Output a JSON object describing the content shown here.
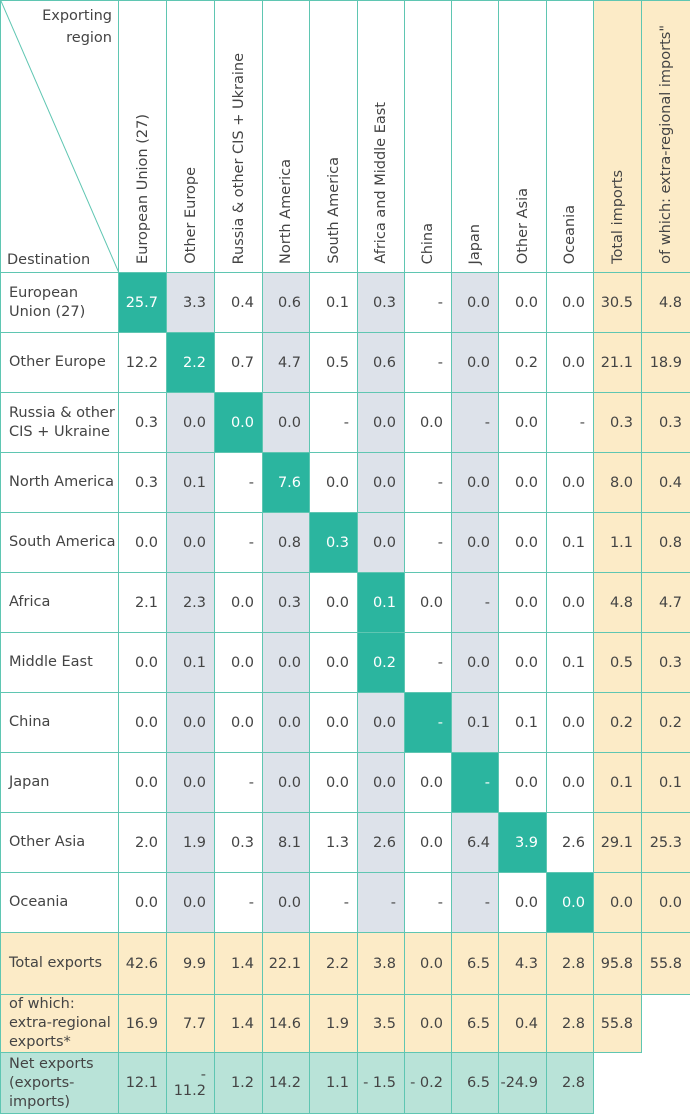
{
  "header": {
    "corner_top": "Exporting region",
    "corner_bottom": "Destination",
    "columns": [
      "European Union (27)",
      "Other Europe",
      "Russia & other CIS + Ukraine",
      "North America",
      "South America",
      "Africa and Middle East",
      "China",
      "Japan",
      "Other Asia",
      "Oceania",
      "Total imports",
      "of which: extra-regional imports\""
    ]
  },
  "rows": [
    {
      "label": "European Union (27)",
      "cells": [
        "25.7",
        "3.3",
        "0.4",
        "0.6",
        "0.1",
        "0.3",
        "-",
        "0.0",
        "0.0",
        "0.0",
        "30.5",
        "4.8"
      ]
    },
    {
      "label": "Other Europe",
      "cells": [
        "12.2",
        "2.2",
        "0.7",
        "4.7",
        "0.5",
        "0.6",
        "-",
        "0.0",
        "0.2",
        "0.0",
        "21.1",
        "18.9"
      ]
    },
    {
      "label": "Russia & other CIS + Ukraine",
      "cells": [
        "0.3",
        "0.0",
        "0.0",
        "0.0",
        "-",
        "0.0",
        "0.0",
        "-",
        "0.0",
        "-",
        "0.3",
        "0.3"
      ]
    },
    {
      "label": "North America",
      "cells": [
        "0.3",
        "0.1",
        "-",
        "7.6",
        "0.0",
        "0.0",
        "-",
        "0.0",
        "0.0",
        "0.0",
        "8.0",
        "0.4"
      ]
    },
    {
      "label": "South America",
      "cells": [
        "0.0",
        "0.0",
        "-",
        "0.8",
        "0.3",
        "0.0",
        "-",
        "0.0",
        "0.0",
        "0.1",
        "1.1",
        "0.8"
      ]
    },
    {
      "label": "Africa",
      "cells": [
        "2.1",
        "2.3",
        "0.0",
        "0.3",
        "0.0",
        "0.1",
        "0.0",
        "-",
        "0.0",
        "0.0",
        "4.8",
        "4.7"
      ]
    },
    {
      "label": "Middle East",
      "cells": [
        "0.0",
        "0.1",
        "0.0",
        "0.0",
        "0.0",
        "0.2",
        "-",
        "0.0",
        "0.0",
        "0.1",
        "0.5",
        "0.3"
      ]
    },
    {
      "label": "China",
      "cells": [
        "0.0",
        "0.0",
        "0.0",
        "0.0",
        "0.0",
        "0.0",
        "-",
        "0.1",
        "0.1",
        "0.0",
        "0.2",
        "0.2"
      ]
    },
    {
      "label": "Japan",
      "cells": [
        "0.0",
        "0.0",
        "-",
        "0.0",
        "0.0",
        "0.0",
        "0.0",
        "-",
        "0.0",
        "0.0",
        "0.1",
        "0.1"
      ]
    },
    {
      "label": "Other Asia",
      "cells": [
        "2.0",
        "1.9",
        "0.3",
        "8.1",
        "1.3",
        "2.6",
        "0.0",
        "6.4",
        "3.9",
        "2.6",
        "29.1",
        "25.3"
      ]
    },
    {
      "label": "Oceania",
      "cells": [
        "0.0",
        "0.0",
        "-",
        "0.0",
        "-",
        "-",
        "-",
        "-",
        "0.0",
        "0.0",
        "0.0",
        "0.0"
      ]
    }
  ],
  "total_exports": {
    "label": "Total exports",
    "cells": [
      "42.6",
      "9.9",
      "1.4",
      "22.1",
      "2.2",
      "3.8",
      "0.0",
      "6.5",
      "4.3",
      "2.8",
      "95.8",
      "55.8"
    ]
  },
  "extra_regional_exports": {
    "label": "of which: extra-regional exports*",
    "cells": [
      "16.9",
      "7.7",
      "1.4",
      "14.6",
      "1.9",
      "3.5",
      "0.0",
      "6.5",
      "0.4",
      "2.8",
      "55.8"
    ]
  },
  "net_exports": {
    "label": "Net exports (exports-imports)",
    "cells": [
      "12.1",
      "- 11.2",
      "1.2",
      "14.2",
      "1.1",
      "- 1.5",
      "- 0.2",
      "6.5",
      "-24.9",
      "2.8"
    ]
  }
}
